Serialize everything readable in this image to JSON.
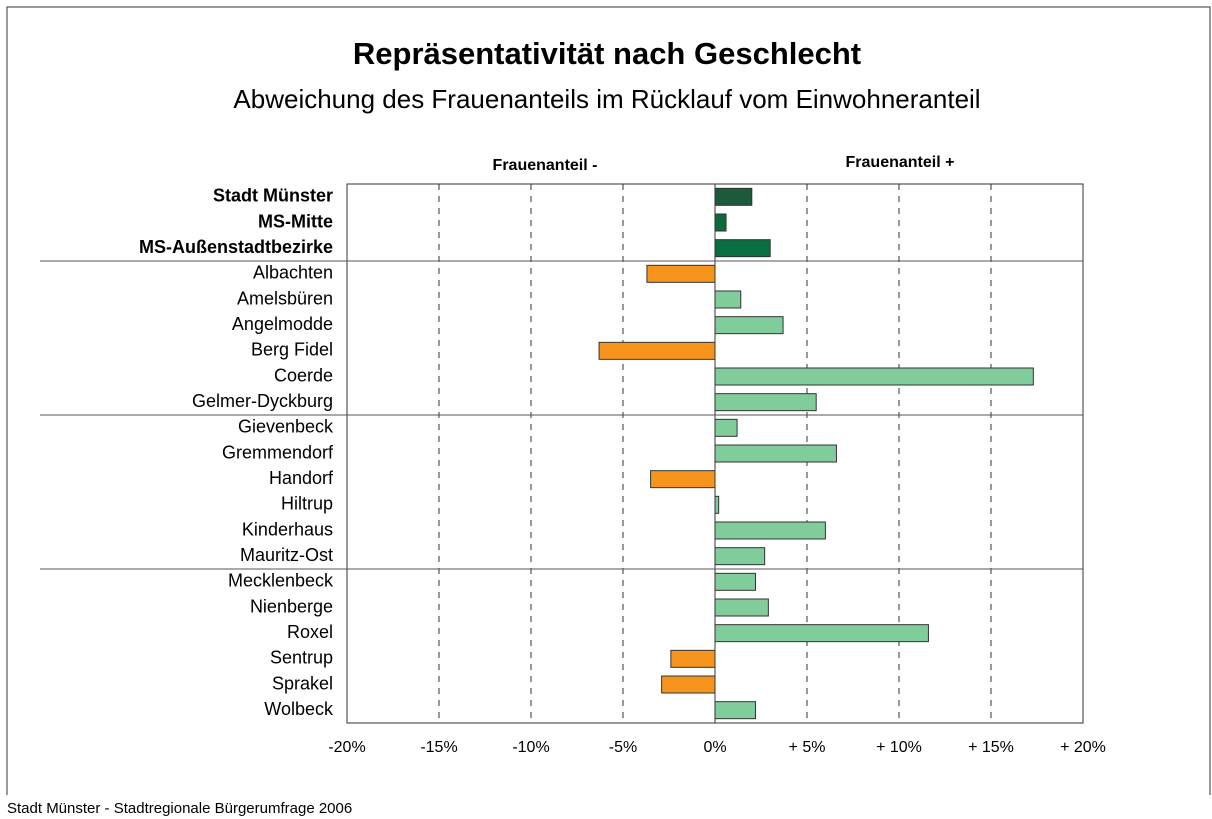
{
  "chart_data": {
    "type": "hbar",
    "title": "Repräsentativität nach Geschlecht",
    "subtitle": "Abweichung des Frauenanteils im Rücklauf vom Einwohneranteil",
    "annotations": [
      "Frauenanteil -",
      "Frauenanteil +"
    ],
    "footer": "Stadt Münster - Stadtregionale Bürgerumfrage 2006",
    "categories": [
      "Stadt Münster",
      "MS-Mitte",
      "MS-Außenstadtbezirke",
      "Albachten",
      "Amelsbüren",
      "Angelmodde",
      "Berg Fidel",
      "Coerde",
      "Gelmer-Dyckburg",
      "Gievenbeck",
      "Gremmendorf",
      "Handorf",
      "Hiltrup",
      "Kinderhaus",
      "Mauritz-Ost",
      "Mecklenbeck",
      "Nienberge",
      "Roxel",
      "Sentrup",
      "Sprakel",
      "Wolbeck"
    ],
    "values": [
      2.0,
      0.6,
      3.0,
      -3.7,
      1.4,
      3.7,
      -6.3,
      17.3,
      5.5,
      1.2,
      6.6,
      -3.5,
      0.2,
      6.0,
      2.7,
      2.2,
      2.9,
      11.6,
      -2.4,
      -2.9,
      2.2
    ],
    "colors": [
      "#1d5a3c",
      "#0b6a3e",
      "#0b6e40",
      "#f7941d",
      "#80cc9b",
      "#80cc9b",
      "#f7941d",
      "#80cc9b",
      "#80cc9b",
      "#80cc9b",
      "#80cc9b",
      "#f7941d",
      "#80cc9b",
      "#80cc9b",
      "#80cc9b",
      "#80cc9b",
      "#80cc9b",
      "#80cc9b",
      "#f7941d",
      "#f7941d",
      "#80cc9b"
    ],
    "bold": [
      true,
      true,
      true,
      false,
      false,
      false,
      false,
      false,
      false,
      false,
      false,
      false,
      false,
      false,
      false,
      false,
      false,
      false,
      false,
      false,
      false
    ],
    "group_end": [
      false,
      false,
      true,
      false,
      false,
      false,
      false,
      false,
      true,
      false,
      false,
      false,
      false,
      false,
      true,
      false,
      false,
      false,
      false,
      false,
      false
    ],
    "xlim": [
      -20,
      20
    ],
    "xticks": [
      {
        "value": -20,
        "label": "-20%"
      },
      {
        "value": -15,
        "label": "-15%"
      },
      {
        "value": -10,
        "label": "-10%"
      },
      {
        "value": -5,
        "label": "-5%"
      },
      {
        "value": 0,
        "label": "0%"
      },
      {
        "value": 5,
        "label": "+ 5%"
      },
      {
        "value": 10,
        "label": "+ 10%"
      },
      {
        "value": 15,
        "label": "+ 15%"
      },
      {
        "value": 20,
        "label": "+ 20%"
      }
    ],
    "grid": true
  }
}
